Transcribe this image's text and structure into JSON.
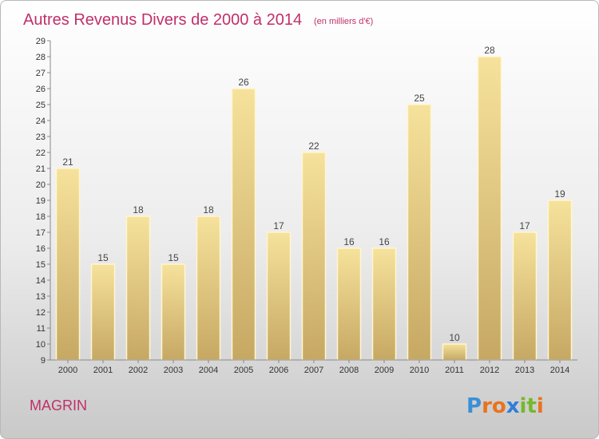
{
  "chart_data": {
    "type": "bar",
    "title": "Autres Revenus Divers de 2000 à 2014",
    "unit": "(en milliers d'€)",
    "categories": [
      "2000",
      "2001",
      "2002",
      "2003",
      "2004",
      "2005",
      "2006",
      "2007",
      "2008",
      "2009",
      "2010",
      "2011",
      "2012",
      "2013",
      "2014"
    ],
    "values": [
      21,
      15,
      18,
      15,
      18,
      26,
      17,
      22,
      16,
      16,
      25,
      10,
      28,
      17,
      19
    ],
    "ylim": [
      9,
      29
    ],
    "yticks": [
      9,
      10,
      11,
      12,
      13,
      14,
      15,
      16,
      17,
      18,
      19,
      20,
      21,
      22,
      23,
      24,
      25,
      26,
      27,
      28,
      29
    ],
    "grid": false,
    "legend": "none",
    "bar_color": "#d8bc78"
  },
  "commune": "MAGRIN",
  "logo": {
    "text": "Proxiti",
    "letters": [
      "P",
      "r",
      "o",
      "x",
      "i",
      "t",
      "i"
    ],
    "colors": [
      "#3a8fd6",
      "#e8731f",
      "#e8731f",
      "#2f7ed8",
      "#77b82a",
      "#77b82a",
      "#e8731f"
    ]
  }
}
